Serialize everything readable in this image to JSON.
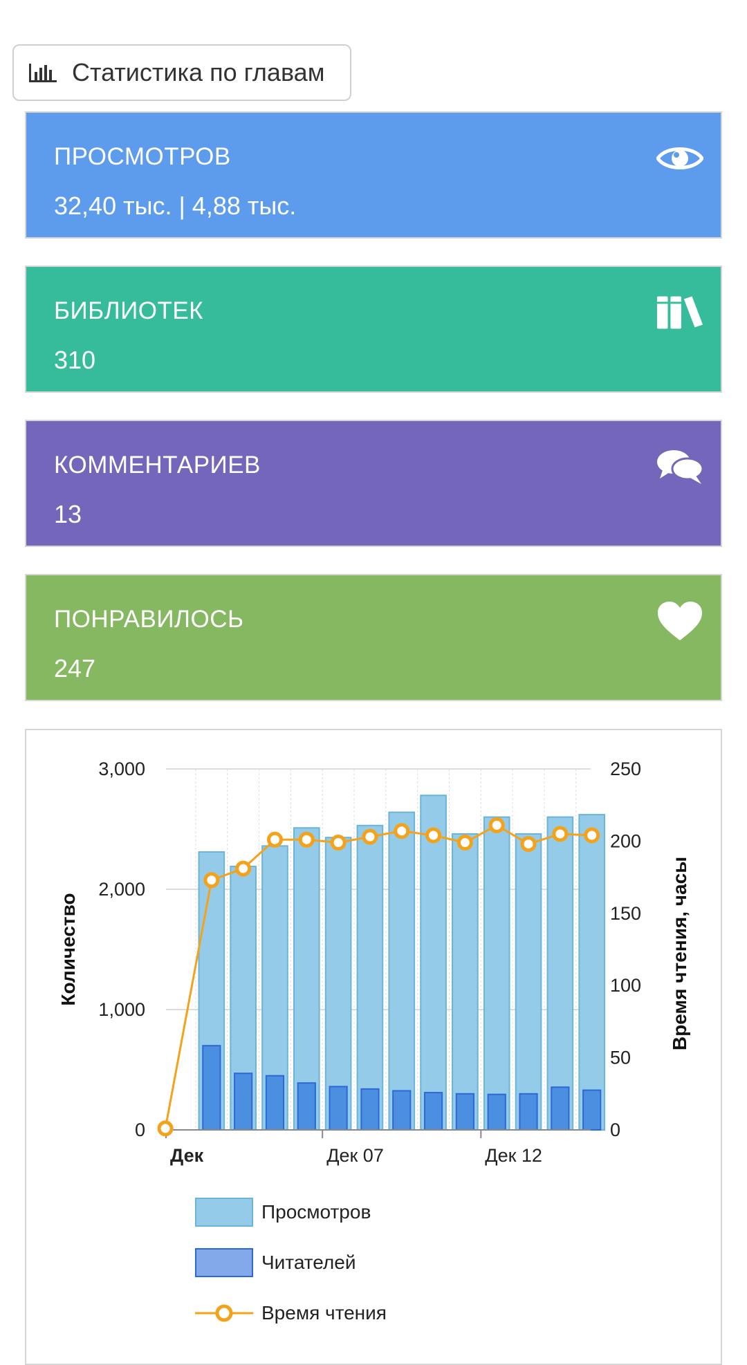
{
  "stats_button": {
    "label": "Статистика по главам",
    "icon": "bar-chart-icon"
  },
  "cards": {
    "views": {
      "label": "ПРОСМОТРОВ",
      "value": "32,40 тыс. | 4,88 тыс.",
      "icon": "eye-icon",
      "color": "#5d9cec"
    },
    "libraries": {
      "label": "БИБЛИОТЕК",
      "value": "310",
      "icon": "books-icon",
      "color": "#37bc9b"
    },
    "comments": {
      "label": "КОММЕНТАРИЕВ",
      "value": "13",
      "icon": "comments-icon",
      "color": "#7467bb"
    },
    "likes": {
      "label": "ПОНРАВИЛОСЬ",
      "value": "247",
      "icon": "heart-icon",
      "color": "#86b862"
    }
  },
  "chart_data": {
    "type": "bar",
    "x_tick_labels": [
      "Дек",
      "Дек 07",
      "Дек 12"
    ],
    "y_left_label": "Количество",
    "y_right_label": "Время чтения, часы",
    "y_left_ticks": [
      "0",
      "1,000",
      "2,000",
      "3,000"
    ],
    "y_right_ticks": [
      "0",
      "50",
      "100",
      "150",
      "200",
      "250"
    ],
    "ylim_left": [
      0,
      3000
    ],
    "ylim_right": [
      0,
      250
    ],
    "grid": true,
    "legend_position": "bottom",
    "series": [
      {
        "name": "Просмотров",
        "axis": "left",
        "color": "#93cbe8",
        "values": [
          null,
          2310,
          2190,
          2360,
          2510,
          2430,
          2530,
          2640,
          2780,
          2460,
          2600,
          2460,
          2600,
          2620
        ]
      },
      {
        "name": "Читателей",
        "axis": "left",
        "color": "#4a8fe0",
        "values": [
          null,
          700,
          470,
          450,
          390,
          360,
          340,
          325,
          310,
          300,
          295,
          300,
          355,
          330
        ]
      },
      {
        "name": "Время чтения",
        "axis": "right",
        "color": "#f5a21b",
        "values": [
          1,
          173,
          181,
          201,
          201,
          199,
          203,
          207,
          204,
          199,
          211,
          198,
          205,
          204
        ]
      }
    ]
  },
  "legend": {
    "views": "Просмотров",
    "readers": "Читателей",
    "reading_time": "Время чтения"
  }
}
